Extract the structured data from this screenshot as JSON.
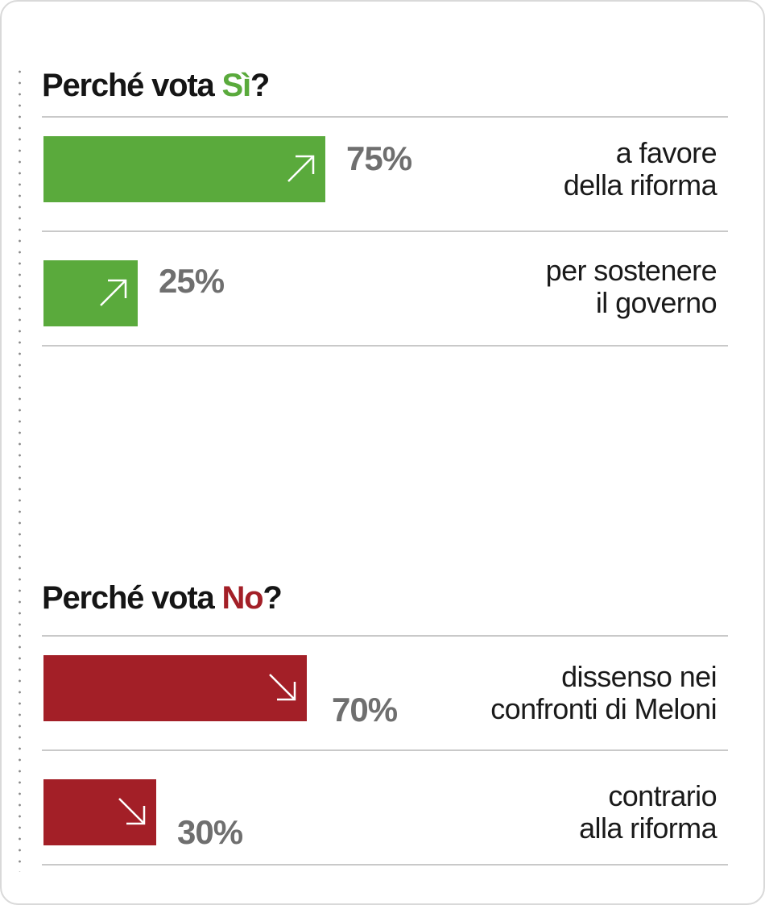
{
  "colors": {
    "si": "#5aaa3c",
    "no": "#a31f27",
    "pct": "#6f6f6f"
  },
  "chart_data": [
    {
      "type": "bar",
      "title": "Perché vota Sì?",
      "title_parts": {
        "before": "Perché vota ",
        "accent": "Sì",
        "after": "?"
      },
      "categories": [
        "a favore della riforma",
        "per sostenere il governo"
      ],
      "category_lines": [
        [
          "a favore",
          "della riforma"
        ],
        [
          "per sostenere",
          "il governo"
        ]
      ],
      "values": [
        75,
        25
      ],
      "value_labels": [
        "75%",
        "25%"
      ],
      "xlim": [
        0,
        100
      ],
      "arrow_icon": "arrow-up-right-icon",
      "grid": false
    },
    {
      "type": "bar",
      "title": "Perché vota No?",
      "title_parts": {
        "before": "Perché vota ",
        "accent": "No",
        "after": "?"
      },
      "categories": [
        "dissenso nei confronti di Meloni",
        "contrario alla riforma"
      ],
      "category_lines": [
        [
          "dissenso nei",
          "confronti di Meloni"
        ],
        [
          "contrario",
          "alla riforma"
        ]
      ],
      "values": [
        70,
        30
      ],
      "value_labels": [
        "70%",
        "30%"
      ],
      "xlim": [
        0,
        100
      ],
      "arrow_icon": "arrow-down-right-icon",
      "grid": false
    }
  ]
}
